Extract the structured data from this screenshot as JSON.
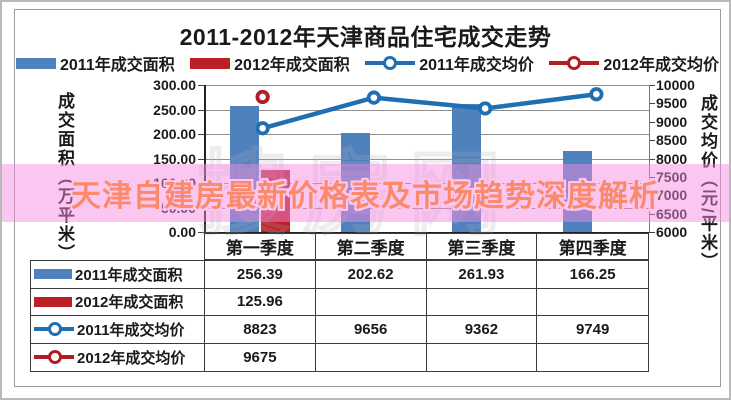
{
  "banner": {
    "text": "天津自建房最新价格表及市场趋势深度解析",
    "text_color": "#ff8a00",
    "band_color": "rgba(246,137,226,0.48)"
  },
  "watermark": {
    "text": "搜房网"
  },
  "chart_data": {
    "type": "bar+line combo",
    "title": "2011-2012年天津商品住宅成交走势",
    "categories": [
      "第一季度",
      "第二季度",
      "第三季度",
      "第四季度"
    ],
    "series": [
      {
        "name": "2011年成交面积",
        "type": "bar",
        "axis": "left",
        "color": "#4f81bd",
        "values": [
          256.39,
          202.62,
          261.93,
          166.25
        ]
      },
      {
        "name": "2012年成交面积",
        "type": "bar",
        "axis": "left",
        "color": "#bb2024",
        "values": [
          125.96,
          null,
          null,
          null
        ]
      },
      {
        "name": "2011年成交均价",
        "type": "line",
        "axis": "right",
        "color": "#1f6fb2",
        "values": [
          8823,
          9656,
          9362,
          9749
        ]
      },
      {
        "name": "2012年成交均价",
        "type": "line",
        "axis": "right",
        "color": "#b01e24",
        "values": [
          9675,
          null,
          null,
          null
        ]
      }
    ],
    "left_axis": {
      "label": "成交面积（万平米）",
      "min": 0,
      "max": 300,
      "ticks": [
        "300.00",
        "250.00",
        "200.00",
        "150.00",
        "100.00",
        "50.00",
        "0.00"
      ]
    },
    "right_axis": {
      "label": "成交均价（元/平米）",
      "min": 6000,
      "max": 10000,
      "ticks": [
        "10000",
        "9500",
        "9000",
        "8500",
        "8000",
        "7500",
        "7000",
        "6500",
        "6000"
      ]
    },
    "legend_position": "top",
    "grid": true
  },
  "table": {
    "header": [
      "第一季度",
      "第二季度",
      "第三季度",
      "第四季度"
    ],
    "rows": [
      {
        "label": "2011年成交面积",
        "marker": "bar",
        "color": "#4f81bd",
        "cells": [
          "256.39",
          "202.62",
          "261.93",
          "166.25"
        ]
      },
      {
        "label": "2012年成交面积",
        "marker": "bar",
        "color": "#bb2024",
        "cells": [
          "125.96",
          "",
          "",
          ""
        ]
      },
      {
        "label": "2011年成交均价",
        "marker": "line",
        "color": "#1f6fb2",
        "cells": [
          "8823",
          "9656",
          "9362",
          "9749"
        ]
      },
      {
        "label": "2012年成交均价",
        "marker": "line",
        "color": "#b01e24",
        "cells": [
          "9675",
          "",
          "",
          ""
        ]
      }
    ]
  }
}
